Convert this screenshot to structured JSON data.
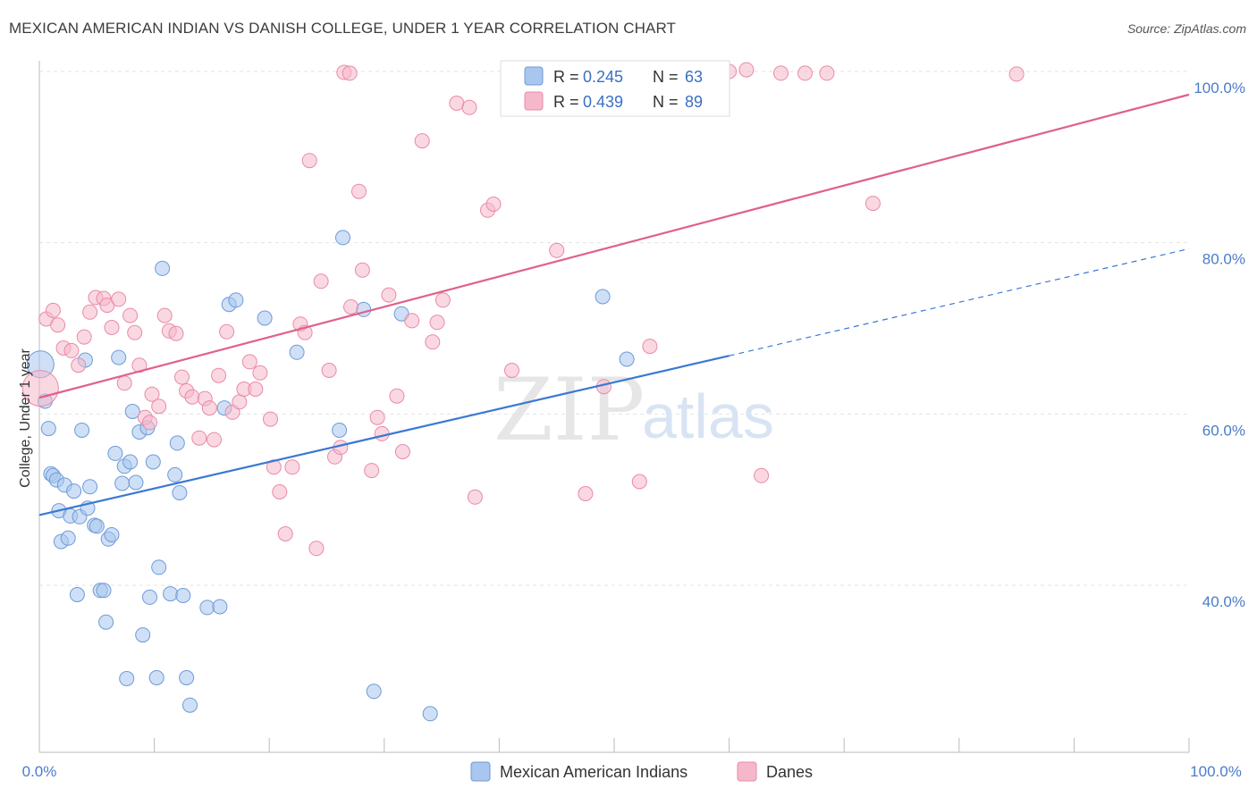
{
  "header": {
    "title": "MEXICAN AMERICAN INDIAN VS DANISH COLLEGE, UNDER 1 YEAR CORRELATION CHART",
    "source": "Source: ZipAtlas.com"
  },
  "watermark": {
    "zip": "ZIP",
    "atlas": "atlas"
  },
  "legend": {
    "rows": [
      {
        "r_label": "R = ",
        "r_value": "0.245",
        "n_label": "N = ",
        "n_value": "63",
        "color": "#a8c6ee"
      },
      {
        "r_label": "R = ",
        "r_value": "0.439",
        "n_label": "N = ",
        "n_value": "89",
        "color": "#f5b8cb"
      }
    ]
  },
  "chart_data": {
    "type": "scatter",
    "title": "MEXICAN AMERICAN INDIAN VS DANISH COLLEGE, UNDER 1 YEAR CORRELATION CHART",
    "xlabel": "",
    "ylabel": "College, Under 1 year",
    "xlim": [
      0,
      100
    ],
    "ylim": [
      20,
      101
    ],
    "x_tick_labels": [
      "0.0%",
      "100.0%"
    ],
    "y_tick_labels": [
      {
        "value": 40,
        "label": "40.0%"
      },
      {
        "value": 60,
        "label": "60.0%"
      },
      {
        "value": 80,
        "label": "80.0%"
      },
      {
        "value": 100,
        "label": "100.0%"
      }
    ],
    "grid": true,
    "legend_position": "top-center",
    "series": [
      {
        "name": "Mexican American Indians",
        "color": "#a8c6ee",
        "stroke": "#6e9ad8",
        "line_color": "#3a78d4",
        "trend": {
          "x0": 0,
          "y0": 48.2,
          "x1": 60,
          "y1": 66.8,
          "dash_x1": 100,
          "dash_y1": 79.3
        },
        "points": [
          [
            0.1,
            65.8
          ],
          [
            0.5,
            61.5
          ],
          [
            0.8,
            58.3
          ],
          [
            1.0,
            53.0
          ],
          [
            1.2,
            52.8
          ],
          [
            1.5,
            52.3
          ],
          [
            1.7,
            48.7
          ],
          [
            1.9,
            45.1
          ],
          [
            2.2,
            51.7
          ],
          [
            2.5,
            45.5
          ],
          [
            2.7,
            48.1
          ],
          [
            3.0,
            51.0
          ],
          [
            3.3,
            38.9
          ],
          [
            3.5,
            48.0
          ],
          [
            3.7,
            58.1
          ],
          [
            4.0,
            66.3
          ],
          [
            4.2,
            49.0
          ],
          [
            4.4,
            51.5
          ],
          [
            4.8,
            47.0
          ],
          [
            5.0,
            46.9
          ],
          [
            5.3,
            39.4
          ],
          [
            5.6,
            39.4
          ],
          [
            5.8,
            35.7
          ],
          [
            6.0,
            45.4
          ],
          [
            6.3,
            45.9
          ],
          [
            6.6,
            55.4
          ],
          [
            6.9,
            66.6
          ],
          [
            7.2,
            51.9
          ],
          [
            7.4,
            53.9
          ],
          [
            7.6,
            29.1
          ],
          [
            7.9,
            54.4
          ],
          [
            8.1,
            60.3
          ],
          [
            8.4,
            52.0
          ],
          [
            8.7,
            57.9
          ],
          [
            9.0,
            34.2
          ],
          [
            9.4,
            58.4
          ],
          [
            9.6,
            38.6
          ],
          [
            9.9,
            54.4
          ],
          [
            10.2,
            29.2
          ],
          [
            10.4,
            42.1
          ],
          [
            10.7,
            77.0
          ],
          [
            11.4,
            39.0
          ],
          [
            11.8,
            52.9
          ],
          [
            12.0,
            56.6
          ],
          [
            12.2,
            50.8
          ],
          [
            12.5,
            38.8
          ],
          [
            12.8,
            29.2
          ],
          [
            13.1,
            26.0
          ],
          [
            14.6,
            37.4
          ],
          [
            15.7,
            37.5
          ],
          [
            16.1,
            60.7
          ],
          [
            16.5,
            72.8
          ],
          [
            17.1,
            73.3
          ],
          [
            19.6,
            71.2
          ],
          [
            22.4,
            67.2
          ],
          [
            26.1,
            58.1
          ],
          [
            26.4,
            80.6
          ],
          [
            28.2,
            72.2
          ],
          [
            29.1,
            27.6
          ],
          [
            31.5,
            71.7
          ],
          [
            34.0,
            25.0
          ],
          [
            49.0,
            73.7
          ],
          [
            51.1,
            66.4
          ]
        ]
      },
      {
        "name": "Danes",
        "color": "#f5b8cb",
        "stroke": "#e98aa8",
        "line_color": "#e0608a",
        "trend": {
          "x0": 0,
          "y0": 61.9,
          "x1": 100,
          "y1": 97.3
        },
        "points": [
          [
            0.1,
            63.0
          ],
          [
            0.6,
            71.1
          ],
          [
            1.2,
            72.1
          ],
          [
            1.6,
            70.4
          ],
          [
            2.1,
            67.7
          ],
          [
            2.8,
            67.4
          ],
          [
            3.4,
            65.7
          ],
          [
            3.9,
            69.0
          ],
          [
            4.4,
            71.9
          ],
          [
            4.9,
            73.6
          ],
          [
            5.6,
            73.5
          ],
          [
            5.9,
            72.7
          ],
          [
            6.3,
            70.1
          ],
          [
            6.9,
            73.4
          ],
          [
            7.4,
            63.6
          ],
          [
            7.9,
            71.5
          ],
          [
            8.3,
            69.5
          ],
          [
            8.7,
            65.7
          ],
          [
            9.2,
            59.6
          ],
          [
            9.6,
            59.0
          ],
          [
            9.8,
            62.3
          ],
          [
            10.4,
            60.9
          ],
          [
            10.9,
            71.5
          ],
          [
            11.3,
            69.7
          ],
          [
            11.9,
            69.4
          ],
          [
            12.4,
            64.3
          ],
          [
            12.8,
            62.7
          ],
          [
            13.3,
            62.0
          ],
          [
            13.9,
            57.2
          ],
          [
            14.4,
            61.8
          ],
          [
            14.8,
            60.7
          ],
          [
            15.2,
            57.0
          ],
          [
            15.6,
            64.5
          ],
          [
            16.3,
            69.6
          ],
          [
            16.8,
            60.2
          ],
          [
            17.4,
            61.4
          ],
          [
            17.8,
            62.9
          ],
          [
            18.3,
            66.1
          ],
          [
            18.8,
            62.9
          ],
          [
            19.2,
            64.8
          ],
          [
            20.1,
            59.4
          ],
          [
            20.4,
            53.8
          ],
          [
            20.9,
            50.9
          ],
          [
            21.4,
            46.0
          ],
          [
            22.0,
            53.8
          ],
          [
            22.7,
            70.5
          ],
          [
            23.1,
            69.5
          ],
          [
            23.5,
            89.6
          ],
          [
            24.1,
            44.3
          ],
          [
            24.5,
            75.5
          ],
          [
            25.2,
            65.1
          ],
          [
            25.7,
            55.0
          ],
          [
            26.2,
            56.1
          ],
          [
            26.5,
            99.9
          ],
          [
            27.1,
            72.5
          ],
          [
            27.8,
            86.0
          ],
          [
            28.1,
            76.8
          ],
          [
            28.9,
            53.4
          ],
          [
            29.4,
            59.6
          ],
          [
            29.8,
            57.7
          ],
          [
            30.4,
            73.9
          ],
          [
            31.1,
            62.1
          ],
          [
            31.6,
            55.6
          ],
          [
            32.4,
            70.9
          ],
          [
            33.3,
            91.9
          ],
          [
            34.2,
            68.4
          ],
          [
            34.6,
            70.7
          ],
          [
            35.1,
            73.3
          ],
          [
            36.3,
            96.3
          ],
          [
            37.4,
            95.8
          ],
          [
            37.9,
            50.3
          ],
          [
            39.0,
            83.8
          ],
          [
            39.5,
            84.5
          ],
          [
            41.1,
            65.1
          ],
          [
            44.4,
            99.8
          ],
          [
            45.0,
            79.1
          ],
          [
            47.5,
            50.7
          ],
          [
            49.1,
            63.2
          ],
          [
            52.2,
            52.1
          ],
          [
            53.1,
            67.9
          ],
          [
            60.0,
            100.0
          ],
          [
            61.5,
            100.2
          ],
          [
            62.8,
            52.8
          ],
          [
            64.5,
            99.8
          ],
          [
            66.6,
            99.8
          ],
          [
            68.5,
            99.8
          ],
          [
            72.5,
            84.6
          ],
          [
            85.0,
            99.7
          ],
          [
            27.0,
            99.8
          ]
        ]
      }
    ]
  },
  "bottom_legend": [
    {
      "label": "Mexican American Indians",
      "color": "#a8c6ee",
      "stroke": "#6e9ad8"
    },
    {
      "label": "Danes",
      "color": "#f5b8cb",
      "stroke": "#e98aa8"
    }
  ]
}
